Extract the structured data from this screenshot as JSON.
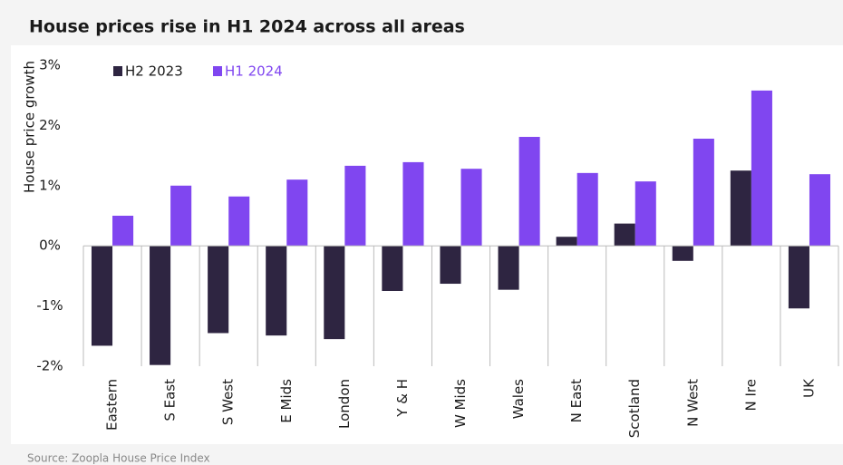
{
  "chart_data": {
    "type": "bar",
    "title": "House prices rise in H1 2024 across all areas",
    "y_label": "House price growth",
    "source": "Source: Zoopla House Price Index",
    "categories": [
      "Eastern",
      "S East",
      "S West",
      "E Mids",
      "London",
      "Y & H",
      "W Mids",
      "Wales",
      "N East",
      "Scotland",
      "N West",
      "N Ire",
      "UK"
    ],
    "series": [
      {
        "name": "H2 2023",
        "color": "#2e2541",
        "values": [
          -1.66,
          -1.98,
          -1.45,
          -1.49,
          -1.55,
          -0.75,
          -0.63,
          -0.73,
          0.15,
          0.37,
          -0.25,
          1.25,
          -1.04
        ]
      },
      {
        "name": "H1 2024",
        "color": "#8046f0",
        "values": [
          0.5,
          1.0,
          0.82,
          1.1,
          1.33,
          1.39,
          1.28,
          1.81,
          1.21,
          1.07,
          1.78,
          2.58,
          1.19
        ]
      }
    ],
    "ylim": [
      -2,
      3
    ],
    "yticks": [
      {
        "value": -2,
        "label": "-2%"
      },
      {
        "value": -1,
        "label": "-1%"
      },
      {
        "value": 0,
        "label": "0%"
      },
      {
        "value": 1,
        "label": "1%"
      },
      {
        "value": 2,
        "label": "2%"
      },
      {
        "value": 3,
        "label": "3%"
      }
    ],
    "grid": false,
    "legend": "top-left"
  }
}
